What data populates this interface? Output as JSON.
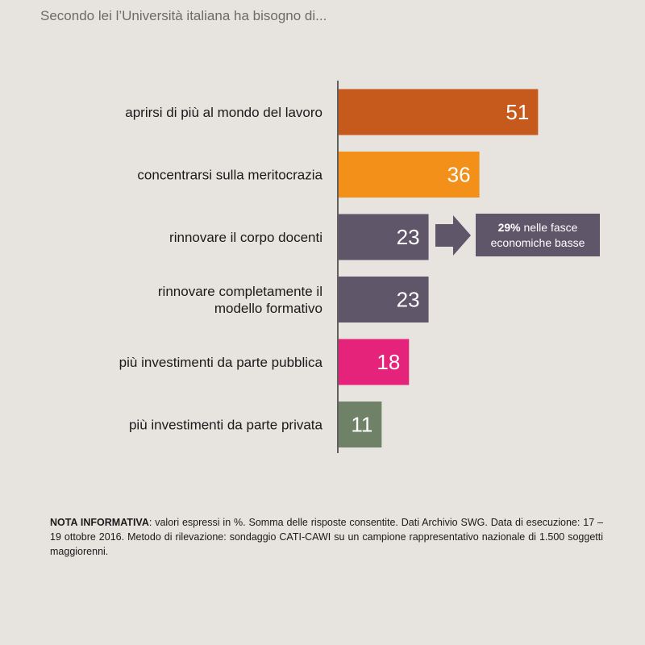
{
  "subtitle": "Secondo lei l’Università italiana ha bisogno di...",
  "chart_data": {
    "type": "bar",
    "orientation": "horizontal",
    "categories": [
      [
        "aprirsi di più al mondo del lavoro"
      ],
      [
        "concentrarsi sulla meritocrazia"
      ],
      [
        "rinnovare il corpo docenti"
      ],
      [
        "rinnovare completamente il",
        "modello formativo"
      ],
      [
        "più investimenti da parte pubblica"
      ],
      [
        "più investimenti da parte privata"
      ]
    ],
    "values": [
      51,
      36,
      23,
      23,
      18,
      11
    ],
    "value_labels": [
      "51",
      "36",
      "23",
      "23",
      "18",
      "11"
    ],
    "colors": [
      "#c55a1c",
      "#f39019",
      "#5f5669",
      "#5f5669",
      "#e5237a",
      "#6f8166"
    ],
    "title": "",
    "xlabel": "",
    "ylabel": "",
    "grid": false,
    "legend": "none"
  },
  "callout": {
    "bold": "29%",
    "line1_rest": " nelle fasce",
    "line2": "economiche basse",
    "color": "#5f5669",
    "arrow_color": "#5f5669"
  },
  "note": {
    "label": "NOTA INFORMATIVA",
    "text": ": valori espressi in %. Somma delle risposte consentite. Dati Archivio SWG. Data di esecuzione: 17 – 19 ottobre 2016. Metodo di rilevazione: sondaggio CATI-CAWI su un campione rappresentativo nazionale di 1.500 soggetti maggiorenni."
  }
}
